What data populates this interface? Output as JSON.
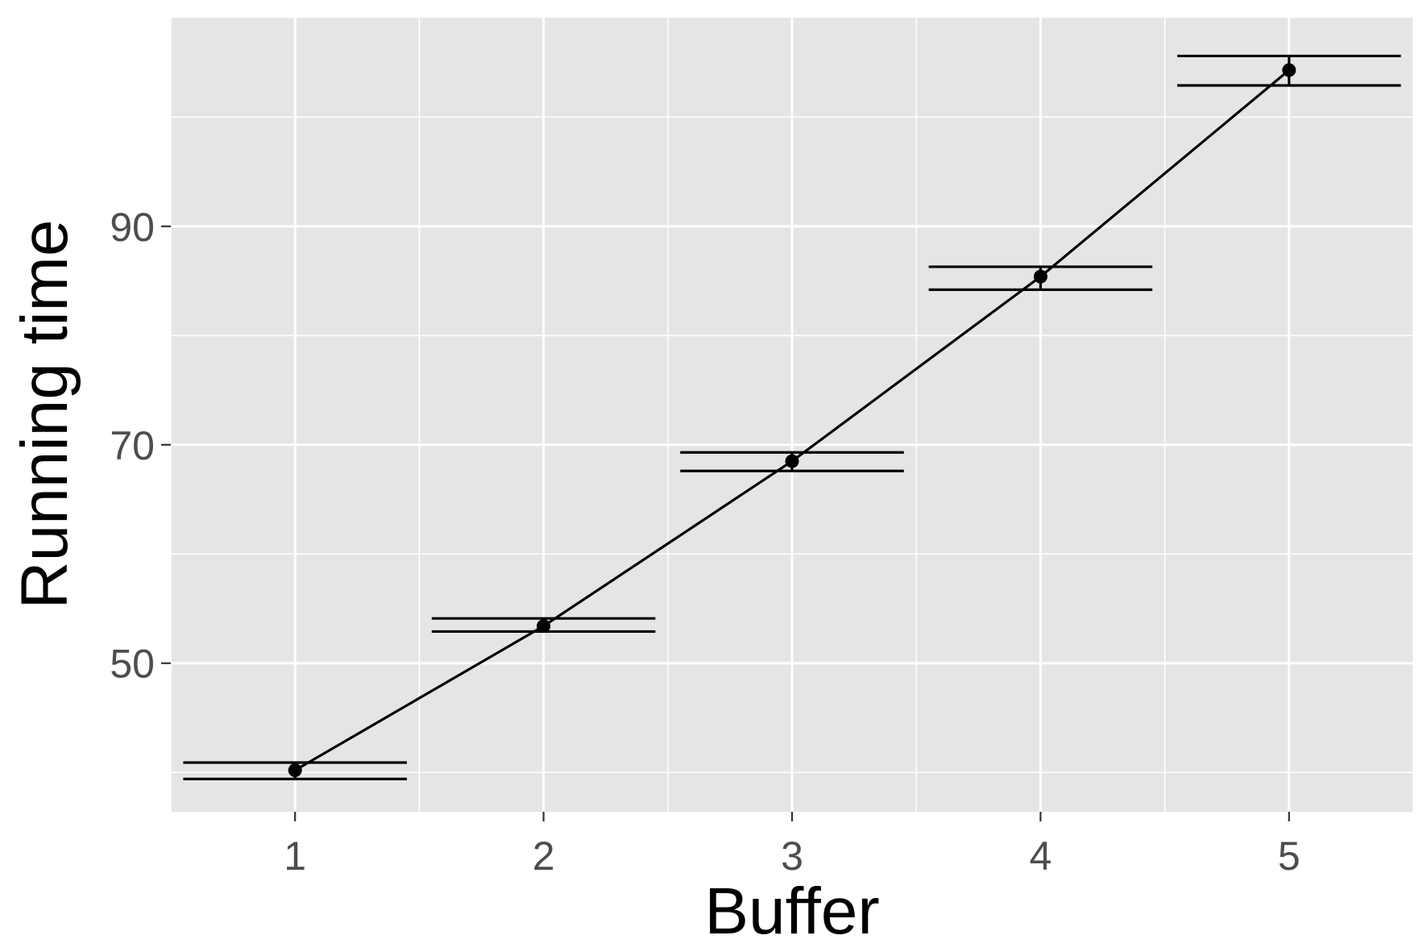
{
  "chart_data": {
    "type": "line",
    "title": "",
    "xlabel": "Buffer",
    "ylabel": "Running time",
    "x": [
      1,
      2,
      3,
      4,
      5
    ],
    "y": [
      40.2,
      53.4,
      68.5,
      85.4,
      104.3
    ],
    "error_bars": {
      "lower": [
        39.4,
        52.9,
        67.6,
        84.2,
        102.9
      ],
      "upper": [
        40.9,
        54.1,
        69.3,
        86.3,
        105.6
      ]
    },
    "x_ticks": [
      "1",
      "2",
      "3",
      "4",
      "5"
    ],
    "y_ticks": [
      50,
      70,
      90
    ],
    "y_tick_labels": [
      "50",
      "70",
      "90"
    ],
    "xlim": [
      0.5,
      5.5
    ],
    "ylim": [
      36.4,
      109.1
    ],
    "grid": true,
    "legend": "none",
    "colors": {
      "panel_background": "#e5e5e5",
      "grid": "#ffffff",
      "series": "#000000",
      "tick_text": "#4d4d4d",
      "axis_title": "#000000"
    }
  }
}
